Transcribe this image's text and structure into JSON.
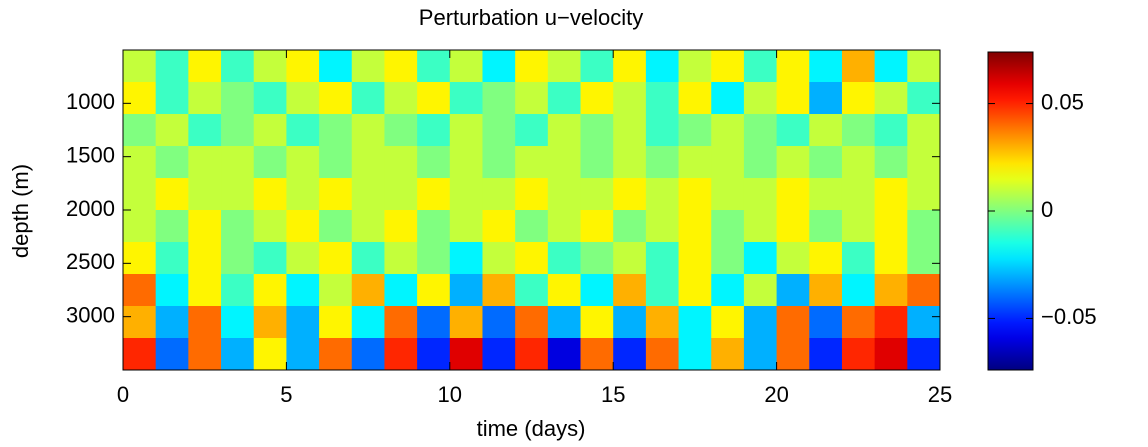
{
  "chart_data": {
    "type": "heatmap",
    "title": "Perturbation u−velocity",
    "xlabel": "time (days)",
    "ylabel": "depth (m)",
    "xlim": [
      0,
      25
    ],
    "xticks": [
      0,
      5,
      10,
      15,
      20,
      25
    ],
    "ylim": [
      500,
      3500
    ],
    "yticks": [
      1000,
      1500,
      2000,
      2500,
      3000
    ],
    "y_reversed": true,
    "colormap": "jet",
    "colorbar": {
      "lim": [
        -0.074,
        0.074
      ],
      "ticks": [
        {
          "value": -0.05,
          "label": "−0.05"
        },
        0,
        0.05
      ]
    },
    "x": [
      0.5,
      1.5,
      2.5,
      3.5,
      4.5,
      5.5,
      6.5,
      7.5,
      8.5,
      9.5,
      10.5,
      11.5,
      12.5,
      13.5,
      14.5,
      15.5,
      16.5,
      17.5,
      18.5,
      19.5,
      20.5,
      21.5,
      22.5,
      23.5,
      24.5
    ],
    "y": [
      650,
      950,
      1250,
      1550,
      1850,
      2150,
      2450,
      2750,
      3050,
      3350
    ],
    "z": [
      [
        0.01,
        -0.01,
        0.02,
        -0.01,
        0.01,
        0.02,
        -0.02,
        0.01,
        0.02,
        -0.01,
        0.01,
        -0.02,
        0.02,
        0.01,
        -0.01,
        0.02,
        -0.02,
        0.01,
        0.02,
        -0.01,
        0.02,
        -0.02,
        0.03,
        -0.02,
        0.01
      ],
      [
        0.02,
        -0.01,
        0.01,
        0,
        -0.01,
        0.01,
        0.02,
        -0.01,
        0.01,
        0.02,
        -0.01,
        0,
        0.01,
        -0.01,
        0.02,
        0.01,
        -0.01,
        0.02,
        -0.02,
        0.01,
        0.02,
        -0.03,
        0.02,
        0.01,
        -0.01
      ],
      [
        0,
        0.01,
        -0.01,
        0,
        0.01,
        -0.01,
        0,
        0.01,
        0,
        -0.01,
        0.01,
        0,
        -0.01,
        0.01,
        0,
        0.01,
        -0.01,
        0,
        0.01,
        0,
        -0.01,
        0.01,
        0,
        -0.01,
        0.01
      ],
      [
        0.01,
        0,
        0.01,
        0.01,
        0,
        0.01,
        0,
        0.01,
        0.01,
        0,
        0.01,
        0,
        0.01,
        0.01,
        0,
        0.01,
        0,
        0.01,
        0.01,
        0,
        0.01,
        0,
        0.01,
        0,
        0.01
      ],
      [
        0.01,
        0.02,
        0.01,
        0.01,
        0.02,
        0.01,
        0.02,
        0.01,
        0.01,
        0.02,
        0.01,
        0.01,
        0.02,
        0.01,
        0.01,
        0.02,
        0.01,
        0.02,
        0.01,
        0.01,
        0.02,
        0.01,
        0.01,
        0.02,
        0.01
      ],
      [
        0.01,
        0,
        0.02,
        0,
        0.01,
        0.02,
        0,
        0.01,
        0.02,
        0,
        0.01,
        0.02,
        0,
        0.01,
        0.02,
        0,
        0.01,
        0.02,
        0,
        0.01,
        0.02,
        0,
        0.01,
        0.02,
        0
      ],
      [
        0.02,
        -0.01,
        0.02,
        0,
        -0.01,
        0.01,
        0.02,
        -0.01,
        0.01,
        0,
        -0.02,
        0.01,
        0.02,
        -0.01,
        0,
        0.01,
        -0.01,
        0.02,
        0,
        -0.02,
        0.01,
        0.02,
        -0.01,
        0.02,
        0
      ],
      [
        0.04,
        -0.02,
        0.02,
        -0.01,
        0.02,
        -0.02,
        0.01,
        0.03,
        -0.02,
        0.02,
        -0.03,
        0.03,
        -0.01,
        0.02,
        -0.02,
        0.03,
        -0.01,
        0.02,
        -0.02,
        0.01,
        -0.03,
        0.03,
        -0.02,
        0.03,
        0.04
      ],
      [
        0.03,
        -0.03,
        0.04,
        -0.02,
        0.03,
        -0.03,
        0.02,
        -0.02,
        0.04,
        -0.04,
        0.03,
        -0.04,
        0.04,
        -0.03,
        0.02,
        -0.03,
        0.03,
        -0.02,
        0.02,
        -0.03,
        0.04,
        -0.04,
        0.04,
        0.05,
        -0.03
      ],
      [
        0.05,
        -0.04,
        0.04,
        -0.03,
        0.02,
        -0.03,
        0.04,
        -0.04,
        0.05,
        -0.05,
        0.06,
        -0.05,
        0.05,
        -0.06,
        0.04,
        -0.05,
        0.04,
        -0.02,
        0.03,
        -0.03,
        0.04,
        -0.05,
        0.05,
        0.06,
        -0.05
      ]
    ]
  }
}
